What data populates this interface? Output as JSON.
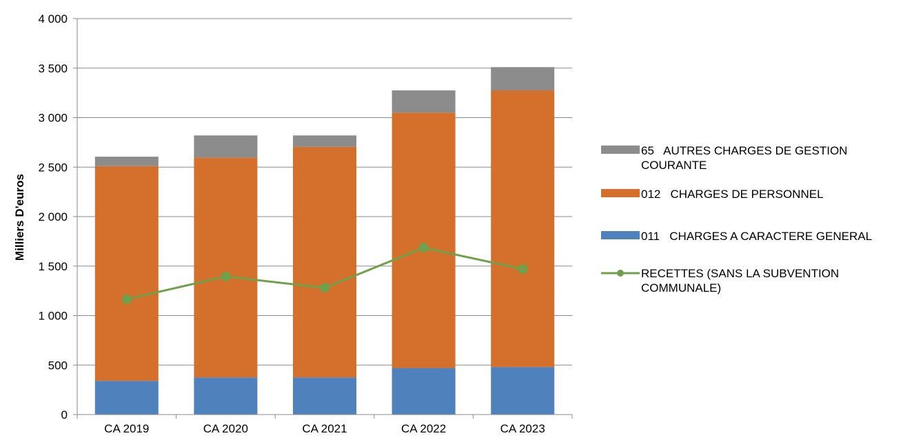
{
  "chart_data": {
    "type": "bar",
    "stacked": true,
    "categories": [
      "CA 2019",
      "CA 2020",
      "CA 2021",
      "CA 2022",
      "CA 2023"
    ],
    "series": [
      {
        "name": "011   CHARGES A CARACTERE GENERAL",
        "type": "bar",
        "color": "#4F81BD",
        "values": [
          340,
          375,
          375,
          470,
          480
        ]
      },
      {
        "name": "012   CHARGES DE PERSONNEL",
        "type": "bar",
        "color": "#D4702B",
        "values": [
          2170,
          2220,
          2330,
          2580,
          2795
        ]
      },
      {
        "name": "65   AUTRES CHARGES DE GESTION COURANTE",
        "type": "bar",
        "color": "#8C8C8C",
        "values": [
          95,
          225,
          115,
          225,
          235
        ]
      },
      {
        "name": "RECETTES (SANS LA SUBVENTION COMMUNALE)",
        "type": "line",
        "color": "#6FA04C",
        "values": [
          1165,
          1395,
          1280,
          1685,
          1470
        ]
      }
    ],
    "ylabel": "Milliers D'euros",
    "xlabel": "",
    "ylim": [
      0,
      4000
    ],
    "yticks": [
      "0",
      "500",
      "1 000",
      "1 500",
      "2 000",
      "2 500",
      "3 000",
      "3 500",
      "4 000"
    ],
    "grid": true,
    "legend_position": "right"
  },
  "legend": [
    {
      "label": "65   AUTRES CHARGES DE GESTION COURANTE",
      "color": "#8C8C8C",
      "kind": "bar"
    },
    {
      "label": "012   CHARGES DE PERSONNEL",
      "color": "#D4702B",
      "kind": "bar"
    },
    {
      "label": "011   CHARGES A CARACTERE GENERAL",
      "color": "#4F81BD",
      "kind": "bar"
    },
    {
      "label": "RECETTES (SANS LA SUBVENTION COMMUNALE)",
      "color": "#6FA04C",
      "kind": "line"
    }
  ]
}
